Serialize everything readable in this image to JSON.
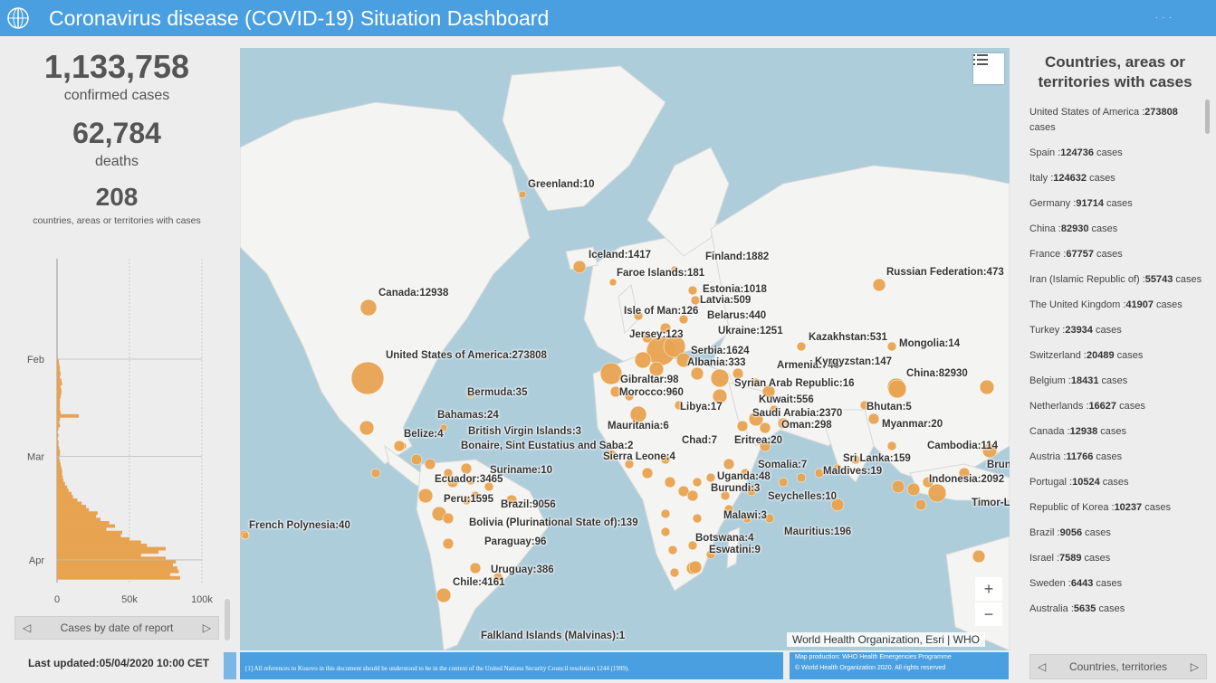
{
  "header": {
    "title": "Coronavirus disease (COVID-19) Situation Dashboard",
    "bg_color": "#4a9fe0"
  },
  "summary": {
    "confirmed_value": "1,133,758",
    "confirmed_label": "confirmed cases",
    "deaths_value": "62,784",
    "deaths_label": "deaths",
    "countries_value": "208",
    "countries_label": "countries, areas or territories with cases"
  },
  "chart_data": {
    "type": "bar",
    "orientation": "horizontal",
    "xlabel": "",
    "ylabel": "",
    "x_ticks": [
      "0",
      "50k",
      "100k"
    ],
    "xlim": [
      0,
      100000
    ],
    "y_ticks": [
      "Feb",
      "Mar",
      "Apr"
    ],
    "bar_color": "#e8a350",
    "grid": true,
    "series": [
      {
        "values": [
          0,
          0,
          0,
          0,
          0,
          0,
          0,
          0,
          0,
          0,
          0,
          0,
          0,
          0,
          0,
          0,
          0,
          0,
          0,
          0,
          0,
          0,
          0,
          0,
          0,
          0,
          0,
          0,
          0,
          0,
          500,
          1200,
          1500,
          2000,
          2000,
          2500,
          2000,
          3000,
          3500,
          2500,
          3000,
          3000,
          2500,
          2000,
          2000,
          2000,
          2000,
          2500,
          15000,
          2000,
          1500,
          2000,
          1000,
          500,
          1000,
          500,
          1000,
          1000,
          1500,
          2000,
          2000,
          1500,
          2000,
          2500,
          3000,
          3500,
          3500,
          4000,
          4500,
          5500,
          7000,
          8000,
          10000,
          11000,
          14000,
          17000,
          20000,
          22000,
          28000,
          27000,
          30000,
          36000,
          40000,
          34000,
          45000,
          44000,
          50000,
          58000,
          62000,
          75000,
          70000,
          58000,
          75000,
          82000,
          80000,
          83000,
          84000,
          78000,
          85000,
          0
        ]
      }
    ]
  },
  "chart_nav": {
    "label": "Cases by date of report"
  },
  "last_updated": "Last updated:05/04/2020 10:00 CET",
  "map": {
    "attribution": "World Health Organization, Esri | WHO",
    "footnote": "[1] All references to Kosovo in this document should be understood to be in the context of the United Nations Security Council resolution 1244 (1999).",
    "credit_line1": "Map production: WHO Health Emergencies Programme",
    "credit_line2": "© World Health Organization 2020. All rights reserved",
    "bubble_color": "#e8a350",
    "labels": [
      "Greenland:10",
      "Iceland:1417",
      "Faroe Islands:181",
      "Finland:1882",
      "Russian Federation:473",
      "Canada:12938",
      "Estonia:1018",
      "Latvia:509",
      "Belarus:440",
      "Isle of Man:126",
      "Ukraine:1251",
      "Jersey:123",
      "Kazakhstan:531",
      "Mongolia:14",
      "Serbia:1624",
      "United States of America:273808",
      "Albania:333",
      "Armenia:746",
      "Kyrgyzstan:147",
      "Gibraltar:98",
      "Syrian Arab Republic:16",
      "China:82930",
      "Bermuda:35",
      "Morocco:960",
      "Kuwait:556",
      "Libya:17",
      "Bhutan:5",
      "Bahamas:24",
      "Saudi Arabia:2370",
      "Mauritania:6",
      "Oman:298",
      "Myanmar:20",
      "Belize:4",
      "British Virgin Islands:3",
      "Chad:7",
      "Eritrea:20",
      "Bonaire, Sint Eustatius and Saba:2",
      "Cambodia:114",
      "Sierra Leone:4",
      "Somalia:7",
      "Sri Lanka:159",
      "Brunei Darussa",
      "Suriname:10",
      "Maldives:19",
      "Indonesia:2092",
      "Ecuador:3465",
      "Uganda:48",
      "Burundi:3",
      "Peru:1595",
      "Brazil:9056",
      "Seychelles:10",
      "Timor-Les",
      "French Polynesia:40",
      "Malawi:3",
      "Bolivia (Plurinational State of):139",
      "Mauritius:196",
      "Botswana:4",
      "Paraguay:96",
      "Eswatini:9",
      "Uruguay:386",
      "Chile:4161",
      "Falkland Islands (Malvinas):1"
    ]
  },
  "right_panel": {
    "title_line1": "Countries, areas or",
    "title_line2": "territories with cases",
    "items": [
      {
        "name": "United States of America :",
        "count": "273808",
        "suffix": " cases"
      },
      {
        "name": "Spain :",
        "count": "124736",
        "suffix": " cases"
      },
      {
        "name": "Italy :",
        "count": "124632",
        "suffix": " cases"
      },
      {
        "name": "Germany :",
        "count": "91714",
        "suffix": " cases"
      },
      {
        "name": "China :",
        "count": "82930",
        "suffix": " cases"
      },
      {
        "name": "France :",
        "count": "67757",
        "suffix": " cases"
      },
      {
        "name": "Iran (Islamic Republic of) :",
        "count": "55743",
        "suffix": " cases"
      },
      {
        "name": "The United Kingdom :",
        "count": "41907",
        "suffix": " cases"
      },
      {
        "name": "Turkey :",
        "count": "23934",
        "suffix": " cases"
      },
      {
        "name": "Switzerland :",
        "count": "20489",
        "suffix": " cases"
      },
      {
        "name": "Belgium :",
        "count": "18431",
        "suffix": " cases"
      },
      {
        "name": "Netherlands :",
        "count": "16627",
        "suffix": " cases"
      },
      {
        "name": "Canada :",
        "count": "12938",
        "suffix": " cases"
      },
      {
        "name": "Austria :",
        "count": "11766",
        "suffix": " cases"
      },
      {
        "name": "Portugal :",
        "count": "10524",
        "suffix": " cases"
      },
      {
        "name": "Republic of Korea :",
        "count": "10237",
        "suffix": " cases"
      },
      {
        "name": "Brazil :",
        "count": "9056",
        "suffix": " cases"
      },
      {
        "name": "Israel :",
        "count": "7589",
        "suffix": " cases"
      },
      {
        "name": "Sweden :",
        "count": "6443",
        "suffix": " cases"
      },
      {
        "name": "Australia :",
        "count": "5635",
        "suffix": " cases"
      }
    ],
    "nav_label": "Countries, territories"
  }
}
